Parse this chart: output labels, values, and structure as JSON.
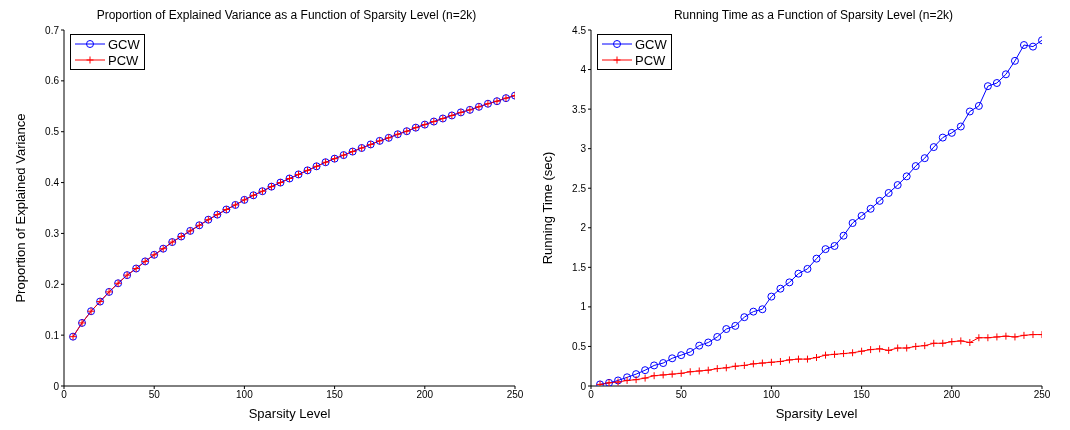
{
  "chart_data": [
    {
      "type": "line",
      "title": "Proportion of Explained Variance as a Function of Sparsity Level (n=2k)",
      "xlabel": "Sparsity Level",
      "ylabel": "Proportion of Explained Variance",
      "x": [
        5,
        10,
        15,
        20,
        25,
        30,
        35,
        40,
        45,
        50,
        55,
        60,
        65,
        70,
        75,
        80,
        85,
        90,
        95,
        100,
        105,
        110,
        115,
        120,
        125,
        130,
        135,
        140,
        145,
        150,
        155,
        160,
        165,
        170,
        175,
        180,
        185,
        190,
        195,
        200,
        205,
        210,
        215,
        220,
        225,
        230,
        235,
        240,
        245,
        250
      ],
      "xlim": [
        0,
        250
      ],
      "xticks": [
        0,
        50,
        100,
        150,
        200,
        250
      ],
      "ylim": [
        0,
        0.7
      ],
      "yticks": [
        0,
        0.1,
        0.2,
        0.3,
        0.4,
        0.5,
        0.6,
        0.7
      ],
      "legend": "top left",
      "grid": false,
      "series": [
        {
          "name": "GCW",
          "color": "#0000ff",
          "marker": "circle",
          "values": [
            0.097,
            0.124,
            0.147,
            0.166,
            0.185,
            0.202,
            0.218,
            0.231,
            0.245,
            0.258,
            0.27,
            0.283,
            0.294,
            0.305,
            0.316,
            0.327,
            0.337,
            0.347,
            0.356,
            0.366,
            0.375,
            0.383,
            0.392,
            0.4,
            0.408,
            0.416,
            0.424,
            0.432,
            0.44,
            0.447,
            0.454,
            0.461,
            0.468,
            0.475,
            0.482,
            0.488,
            0.495,
            0.501,
            0.508,
            0.514,
            0.52,
            0.526,
            0.532,
            0.538,
            0.543,
            0.549,
            0.555,
            0.56,
            0.566,
            0.571
          ]
        },
        {
          "name": "PCW",
          "color": "#ff0000",
          "marker": "cross",
          "values": [
            0.097,
            0.124,
            0.147,
            0.166,
            0.185,
            0.202,
            0.218,
            0.231,
            0.245,
            0.258,
            0.27,
            0.283,
            0.294,
            0.305,
            0.316,
            0.327,
            0.337,
            0.347,
            0.356,
            0.366,
            0.375,
            0.383,
            0.392,
            0.4,
            0.408,
            0.416,
            0.424,
            0.432,
            0.44,
            0.447,
            0.454,
            0.461,
            0.468,
            0.475,
            0.482,
            0.488,
            0.495,
            0.501,
            0.508,
            0.514,
            0.52,
            0.526,
            0.532,
            0.538,
            0.543,
            0.549,
            0.555,
            0.56,
            0.566,
            0.571
          ]
        }
      ]
    },
    {
      "type": "line",
      "title": "Running Time as a Function of Sparsity Level (n=2k)",
      "xlabel": "Sparsity Level",
      "ylabel": "Running Time (sec)",
      "x": [
        5,
        10,
        15,
        20,
        25,
        30,
        35,
        40,
        45,
        50,
        55,
        60,
        65,
        70,
        75,
        80,
        85,
        90,
        95,
        100,
        105,
        110,
        115,
        120,
        125,
        130,
        135,
        140,
        145,
        150,
        155,
        160,
        165,
        170,
        175,
        180,
        185,
        190,
        195,
        200,
        205,
        210,
        215,
        220,
        225,
        230,
        235,
        240,
        245,
        250
      ],
      "xlim": [
        0,
        250
      ],
      "xticks": [
        0,
        50,
        100,
        150,
        200,
        250
      ],
      "ylim": [
        0,
        4.5
      ],
      "yticks": [
        0,
        0.5,
        1,
        1.5,
        2,
        2.5,
        3,
        3.5,
        4,
        4.5
      ],
      "legend": "top left",
      "grid": false,
      "series": [
        {
          "name": "GCW",
          "color": "#0000ff",
          "marker": "circle",
          "values": [
            0.02,
            0.04,
            0.07,
            0.11,
            0.15,
            0.2,
            0.26,
            0.29,
            0.35,
            0.39,
            0.43,
            0.51,
            0.55,
            0.62,
            0.72,
            0.76,
            0.87,
            0.94,
            0.97,
            1.13,
            1.23,
            1.31,
            1.42,
            1.48,
            1.61,
            1.73,
            1.77,
            1.9,
            2.06,
            2.15,
            2.24,
            2.34,
            2.44,
            2.54,
            2.65,
            2.78,
            2.88,
            3.02,
            3.14,
            3.2,
            3.28,
            3.47,
            3.54,
            3.79,
            3.83,
            3.94,
            4.11,
            4.31,
            4.29,
            4.37
          ]
        },
        {
          "name": "PCW",
          "color": "#ff0000",
          "marker": "cross",
          "values": [
            0.02,
            0.04,
            0.05,
            0.07,
            0.08,
            0.1,
            0.13,
            0.14,
            0.15,
            0.16,
            0.18,
            0.19,
            0.2,
            0.22,
            0.23,
            0.25,
            0.26,
            0.28,
            0.29,
            0.3,
            0.31,
            0.33,
            0.34,
            0.34,
            0.36,
            0.39,
            0.4,
            0.41,
            0.42,
            0.44,
            0.46,
            0.47,
            0.45,
            0.48,
            0.48,
            0.5,
            0.51,
            0.54,
            0.54,
            0.56,
            0.57,
            0.55,
            0.61,
            0.61,
            0.62,
            0.63,
            0.62,
            0.64,
            0.65,
            0.65
          ]
        }
      ]
    }
  ]
}
